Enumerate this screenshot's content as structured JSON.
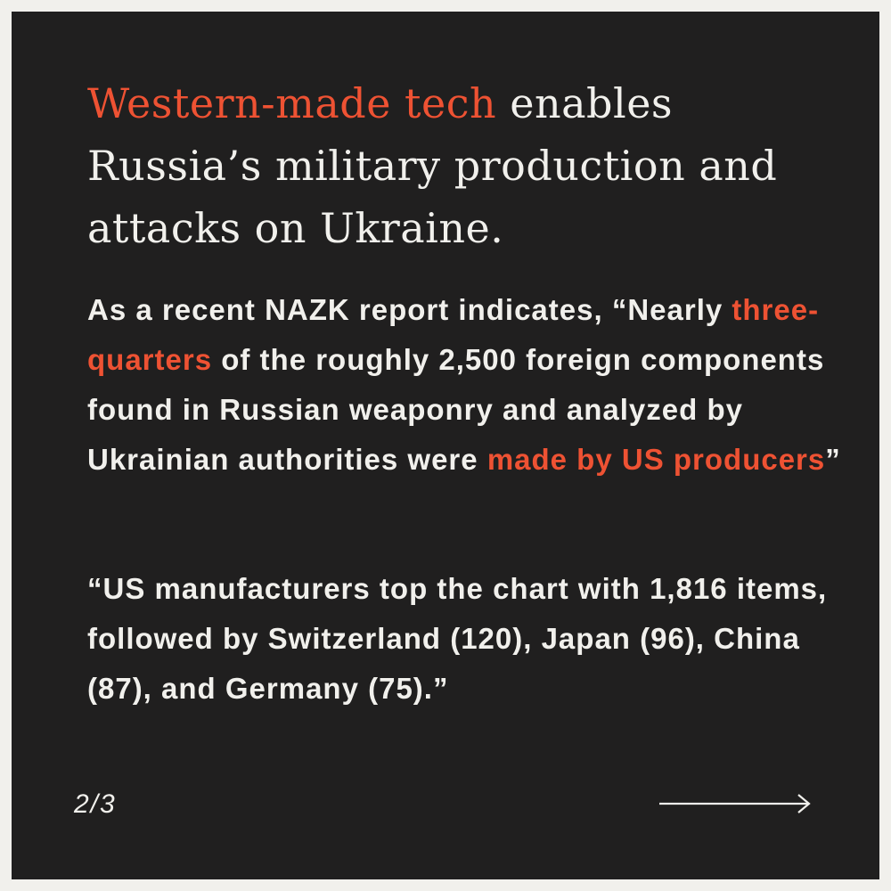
{
  "headline": {
    "accent": "Western-made tech",
    "rest": " enables Russia’s military production and attacks on Ukraine."
  },
  "paragraph1": {
    "part1": "As a recent NAZK report indicates, “Nearly ",
    "accent1": "three-quarters",
    "part2": " of the roughly 2,500 foreign components found in Russian weaponry and analyzed by Ukrainian authorities were ",
    "accent2": "made by US producers",
    "part3": "”"
  },
  "paragraph2": {
    "text": "“US manufacturers top the chart with 1,816 items, followed by Switzerland (120), Japan (96), China (87), and Germany (75).”"
  },
  "pager": {
    "label": "2/3"
  },
  "navigation": {
    "next_icon": "arrow-right-icon"
  },
  "colors": {
    "background": "#201f1f",
    "frame": "#f1f0ec",
    "text": "#f1f0ec",
    "accent": "#ee5233"
  }
}
